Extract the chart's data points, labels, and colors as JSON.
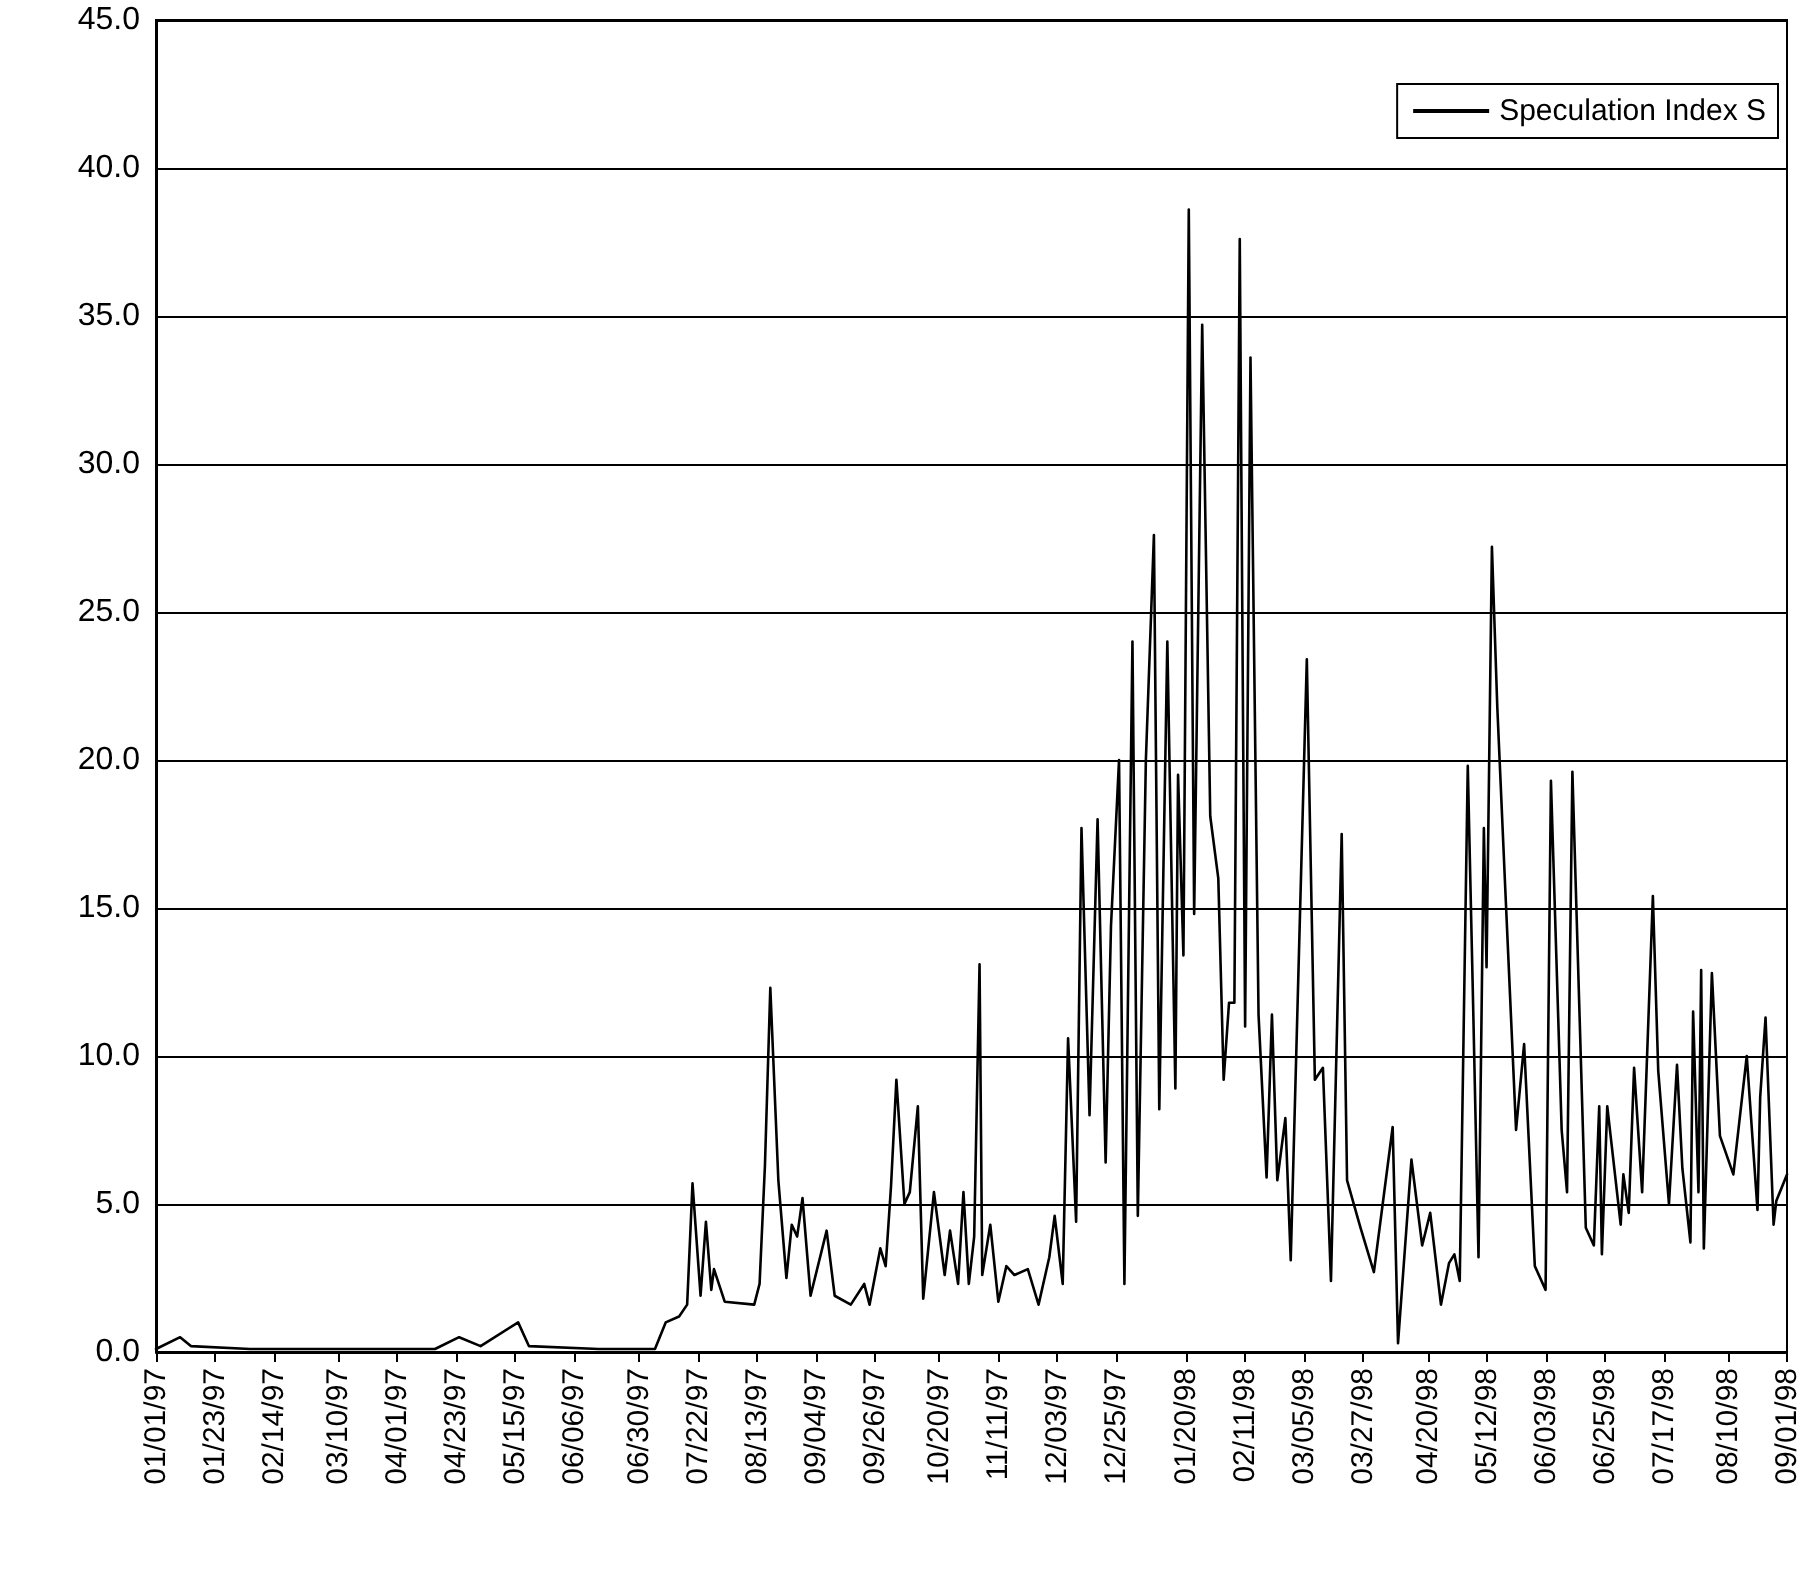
{
  "chart_data": {
    "type": "line",
    "legend": "top right",
    "grid": "y",
    "marker": "none",
    "line_style": "solid",
    "xlim": [
      "1997-01-01",
      "1998-09-01"
    ],
    "xticks": [
      {
        "value": "1997-01-01",
        "label": "01/01/97"
      },
      {
        "value": "1997-01-23",
        "label": "01/23/97"
      },
      {
        "value": "1997-02-14",
        "label": "02/14/97"
      },
      {
        "value": "1997-03-10",
        "label": "03/10/97"
      },
      {
        "value": "1997-04-01",
        "label": "04/01/97"
      },
      {
        "value": "1997-04-23",
        "label": "04/23/97"
      },
      {
        "value": "1997-05-15",
        "label": "05/15/97"
      },
      {
        "value": "1997-06-06",
        "label": "06/06/97"
      },
      {
        "value": "1997-06-30",
        "label": "06/30/97"
      },
      {
        "value": "1997-07-22",
        "label": "07/22/97"
      },
      {
        "value": "1997-08-13",
        "label": "08/13/97"
      },
      {
        "value": "1997-09-04",
        "label": "09/04/97"
      },
      {
        "value": "1997-09-26",
        "label": "09/26/97"
      },
      {
        "value": "1997-10-20",
        "label": "10/20/97"
      },
      {
        "value": "1997-11-11",
        "label": "11/11/97"
      },
      {
        "value": "1997-12-03",
        "label": "12/03/97"
      },
      {
        "value": "1997-12-25",
        "label": "12/25/97"
      },
      {
        "value": "1998-01-20",
        "label": "01/20/98"
      },
      {
        "value": "1998-02-11",
        "label": "02/11/98"
      },
      {
        "value": "1998-03-05",
        "label": "03/05/98"
      },
      {
        "value": "1998-03-27",
        "label": "03/27/98"
      },
      {
        "value": "1998-04-20",
        "label": "04/20/98"
      },
      {
        "value": "1998-05-12",
        "label": "05/12/98"
      },
      {
        "value": "1998-06-03",
        "label": "06/03/98"
      },
      {
        "value": "1998-06-25",
        "label": "06/25/98"
      },
      {
        "value": "1998-07-17",
        "label": "07/17/98"
      },
      {
        "value": "1998-08-10",
        "label": "08/10/98"
      },
      {
        "value": "1998-09-01",
        "label": "09/01/98"
      }
    ],
    "ylim": [
      0,
      45
    ],
    "yticks": [
      {
        "value": 0,
        "label": "0.0"
      },
      {
        "value": 5,
        "label": "5.0"
      },
      {
        "value": 10,
        "label": "10.0"
      },
      {
        "value": 15,
        "label": "15.0"
      },
      {
        "value": 20,
        "label": "20.0"
      },
      {
        "value": 25,
        "label": "25.0"
      },
      {
        "value": 30,
        "label": "30.0"
      },
      {
        "value": 35,
        "label": "35.0"
      },
      {
        "value": 40,
        "label": "40.0"
      },
      {
        "value": 45,
        "label": "45.0"
      }
    ],
    "x": [
      "1997-01-01",
      "1997-01-10",
      "1997-01-14",
      "1997-02-05",
      "1997-03-10",
      "1997-04-15",
      "1997-04-24",
      "1997-05-02",
      "1997-05-16",
      "1997-05-20",
      "1997-06-15",
      "1997-07-06",
      "1997-07-10",
      "1997-07-15",
      "1997-07-18",
      "1997-07-20",
      "1997-07-23",
      "1997-07-25",
      "1997-07-27",
      "1997-07-28",
      "1997-08-01",
      "1997-08-12",
      "1997-08-14",
      "1997-08-16",
      "1997-08-18",
      "1997-08-21",
      "1997-08-24",
      "1997-08-26",
      "1997-08-28",
      "1997-08-30",
      "1997-09-02",
      "1997-09-08",
      "1997-09-11",
      "1997-09-17",
      "1997-09-22",
      "1997-09-24",
      "1997-09-28",
      "1997-09-30",
      "1997-10-02",
      "1997-10-04",
      "1997-10-07",
      "1997-10-09",
      "1997-10-12",
      "1997-10-14",
      "1997-10-18",
      "1997-10-22",
      "1997-10-24",
      "1997-10-27",
      "1997-10-29",
      "1997-10-31",
      "1997-11-02",
      "1997-11-04",
      "1997-11-05",
      "1997-11-08",
      "1997-11-11",
      "1997-11-14",
      "1997-11-17",
      "1997-11-22",
      "1997-11-26",
      "1997-11-30",
      "1997-12-02",
      "1997-12-05",
      "1997-12-07",
      "1997-12-10",
      "1997-12-12",
      "1997-12-15",
      "1997-12-18",
      "1997-12-21",
      "1997-12-23",
      "1997-12-26",
      "1997-12-28",
      "1997-12-31",
      "1998-01-02",
      "1998-01-05",
      "1998-01-08",
      "1998-01-10",
      "1998-01-13",
      "1998-01-16",
      "1998-01-17",
      "1998-01-19",
      "1998-01-21",
      "1998-01-23",
      "1998-01-26",
      "1998-01-29",
      "1998-02-01",
      "1998-02-03",
      "1998-02-05",
      "1998-02-07",
      "1998-02-09",
      "1998-02-11",
      "1998-02-13",
      "1998-02-16",
      "1998-02-19",
      "1998-02-21",
      "1998-02-23",
      "1998-02-26",
      "1998-02-28",
      "1998-03-06",
      "1998-03-09",
      "1998-03-12",
      "1998-03-15",
      "1998-03-19",
      "1998-03-21",
      "1998-03-26",
      "1998-03-31",
      "1998-04-07",
      "1998-04-09",
      "1998-04-14",
      "1998-04-18",
      "1998-04-21",
      "1998-04-25",
      "1998-04-28",
      "1998-04-30",
      "1998-05-02",
      "1998-05-05",
      "1998-05-07",
      "1998-05-09",
      "1998-05-11",
      "1998-05-12",
      "1998-05-14",
      "1998-05-16",
      "1998-05-19",
      "1998-05-23",
      "1998-05-26",
      "1998-05-30",
      "1998-06-03",
      "1998-06-05",
      "1998-06-09",
      "1998-06-11",
      "1998-06-13",
      "1998-06-18",
      "1998-06-21",
      "1998-06-23",
      "1998-06-24",
      "1998-06-26",
      "1998-07-01",
      "1998-07-02",
      "1998-07-04",
      "1998-07-06",
      "1998-07-09",
      "1998-07-13",
      "1998-07-15",
      "1998-07-19",
      "1998-07-22",
      "1998-07-24",
      "1998-07-27",
      "1998-07-28",
      "1998-07-30",
      "1998-07-31",
      "1998-08-01",
      "1998-08-04",
      "1998-08-07",
      "1998-08-12",
      "1998-08-14",
      "1998-08-17",
      "1998-08-21",
      "1998-08-22",
      "1998-08-24",
      "1998-08-27",
      "1998-08-28",
      "1998-09-01"
    ],
    "series": [
      {
        "name": "Speculation Index S",
        "color": "#000000",
        "values": [
          0.1,
          0.5,
          0.2,
          0.1,
          0.1,
          0.1,
          0.5,
          0.2,
          1.0,
          0.2,
          0.1,
          0.1,
          1.0,
          1.2,
          1.6,
          5.7,
          1.9,
          4.4,
          2.1,
          2.8,
          1.7,
          1.6,
          2.3,
          6.3,
          12.3,
          5.8,
          2.5,
          4.3,
          3.9,
          5.2,
          1.9,
          4.1,
          1.9,
          1.6,
          2.3,
          1.6,
          3.5,
          2.9,
          5.6,
          9.2,
          5.0,
          5.4,
          8.3,
          1.8,
          5.4,
          2.6,
          4.1,
          2.3,
          5.4,
          2.3,
          3.9,
          13.1,
          2.6,
          4.3,
          1.7,
          2.9,
          2.6,
          2.8,
          1.6,
          3.2,
          4.6,
          2.3,
          10.6,
          4.4,
          17.7,
          8.0,
          18.0,
          6.4,
          14.4,
          20.0,
          2.3,
          24.0,
          4.6,
          20.0,
          27.6,
          8.2,
          24.0,
          8.9,
          19.5,
          13.4,
          38.6,
          14.8,
          34.7,
          18.1,
          16.0,
          9.2,
          11.8,
          11.8,
          37.6,
          11.0,
          33.6,
          11.4,
          5.9,
          11.4,
          5.8,
          7.9,
          3.1,
          23.4,
          9.2,
          9.6,
          2.4,
          17.5,
          5.8,
          4.2,
          2.7,
          7.6,
          0.3,
          6.5,
          3.6,
          4.7,
          1.6,
          3.0,
          3.3,
          2.4,
          19.8,
          11.7,
          3.2,
          17.7,
          13.0,
          27.2,
          21.8,
          15.6,
          7.5,
          10.4,
          2.9,
          2.1,
          19.3,
          7.5,
          5.4,
          19.6,
          4.2,
          3.6,
          8.3,
          3.3,
          8.3,
          4.3,
          6.0,
          4.7,
          9.6,
          5.4,
          15.4,
          9.5,
          5.0,
          9.7,
          6.2,
          3.7,
          11.5,
          5.4,
          12.9,
          3.5,
          12.8,
          7.3,
          6.0,
          7.6,
          10.0,
          4.8,
          8.6,
          11.3,
          4.3,
          5.1,
          6.0
        ]
      }
    ]
  }
}
